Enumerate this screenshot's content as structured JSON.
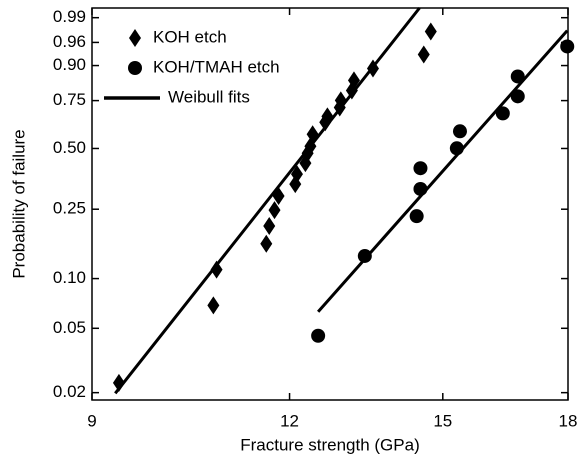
{
  "chart_data": {
    "type": "scatter",
    "x_label": "Fracture strength (GPa)",
    "y_label": "Probability of failure",
    "xscale": "log",
    "yscale": "weibull",
    "xlim": [
      9,
      18
    ],
    "xticks": [
      9,
      12,
      15,
      18
    ],
    "ylim": [
      0.018,
      0.995
    ],
    "yticks": [
      0.02,
      0.05,
      {
        "value": 0.1,
        "label": "0.10"
      },
      0.25,
      {
        "value": 0.5,
        "label": "0.50"
      },
      0.75,
      {
        "value": 0.9,
        "label": "0.90"
      },
      0.96,
      0.99
    ],
    "legend": "upper left",
    "series": [
      {
        "name": "KOH etch",
        "marker": "diamond",
        "color": "#000000",
        "x": [
          9.36,
          10.74,
          10.79,
          11.6,
          11.65,
          11.74,
          11.81,
          12.1,
          12.13,
          12.28,
          12.32,
          12.37,
          12.41,
          12.64,
          12.68,
          12.91,
          12.93,
          13.14,
          13.18,
          13.55,
          14.59,
          14.74
        ],
        "values": [
          0.023,
          0.069,
          0.113,
          0.16,
          0.202,
          0.247,
          0.294,
          0.339,
          0.38,
          0.429,
          0.476,
          0.511,
          0.573,
          0.637,
          0.668,
          0.715,
          0.751,
          0.799,
          0.844,
          0.89,
          0.933,
          0.977
        ]
      },
      {
        "name": "KOH/TMAH etch",
        "marker": "circle",
        "color": "#000000",
        "x": [
          12.51,
          13.39,
          14.44,
          14.52,
          14.52,
          15.31,
          15.38,
          16.37,
          16.73,
          16.73,
          17.98
        ],
        "values": [
          0.045,
          0.136,
          0.229,
          0.32,
          0.406,
          0.501,
          0.589,
          0.684,
          0.771,
          0.86,
          0.952
        ]
      },
      {
        "name": "Weibull fits",
        "marker": "line",
        "color": "#000000",
        "x": [
          9.31,
          14.5,
          null,
          12.51,
          17.98
        ],
        "values": [
          0.0198,
          0.995,
          null,
          0.0631,
          0.978
        ]
      }
    ]
  }
}
